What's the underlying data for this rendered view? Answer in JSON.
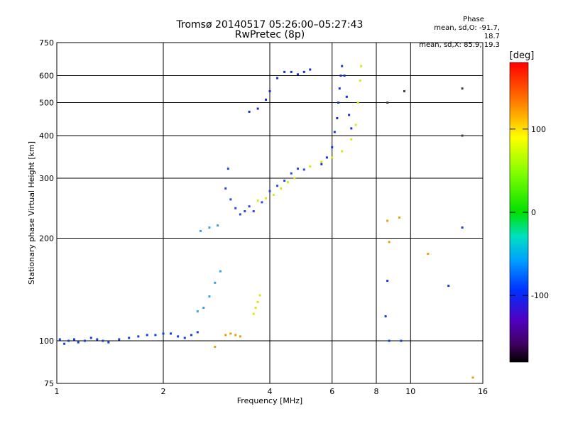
{
  "chart_data": {
    "type": "scatter",
    "title": "Tromsø 20140517 05:26:00–05:27:43",
    "subtitle": "RwPretec (8p)",
    "xlabel": "Frequency [MHz]",
    "ylabel": "Stationary phase Virtual Height [km]",
    "xscale": "log",
    "yscale": "log",
    "xlim": [
      1,
      16
    ],
    "ylim": [
      75,
      750
    ],
    "grid": true,
    "xticks": [
      "1",
      "2",
      "4",
      "6",
      "8",
      "10",
      "16"
    ],
    "yticks": [
      "75",
      "100",
      "200",
      "300",
      "400",
      "500",
      "600",
      "750"
    ],
    "phase_stats": {
      "title": "Phase",
      "O_mode": "mean, sd,O: -91.7, 18.7",
      "X_mode": "mean, sd,X:  85.9, 19.3"
    },
    "colorbar": {
      "label": "[deg]",
      "range": [
        -180,
        180
      ],
      "ticks": [
        "100",
        "0",
        "-100"
      ],
      "tick_values": [
        100,
        0,
        -100
      ]
    },
    "series": [
      {
        "mode": "O",
        "color": "#1040e0",
        "points": [
          [
            1.02,
            101
          ],
          [
            1.05,
            98
          ],
          [
            1.08,
            100
          ],
          [
            1.12,
            101
          ],
          [
            1.15,
            99
          ],
          [
            1.2,
            100
          ],
          [
            1.25,
            102
          ],
          [
            1.3,
            101
          ],
          [
            1.35,
            100
          ],
          [
            1.4,
            99
          ],
          [
            1.5,
            101
          ],
          [
            1.6,
            102
          ],
          [
            1.7,
            103
          ],
          [
            1.8,
            104
          ],
          [
            1.9,
            104
          ],
          [
            2.0,
            105
          ],
          [
            2.1,
            105
          ],
          [
            2.2,
            103
          ],
          [
            2.3,
            102
          ],
          [
            2.4,
            104
          ],
          [
            2.5,
            106
          ]
        ]
      },
      {
        "mode": "O",
        "color": "#2a48e8",
        "points": [
          [
            3.0,
            280
          ],
          [
            3.05,
            320
          ],
          [
            3.1,
            260
          ],
          [
            3.2,
            245
          ],
          [
            3.3,
            235
          ],
          [
            3.4,
            240
          ],
          [
            3.5,
            248
          ],
          [
            3.6,
            240
          ],
          [
            3.8,
            255
          ],
          [
            4.0,
            275
          ],
          [
            4.2,
            285
          ],
          [
            4.4,
            295
          ],
          [
            4.6,
            310
          ],
          [
            4.8,
            320
          ],
          [
            5.0,
            318
          ]
        ]
      },
      {
        "mode": "O",
        "color": "#1a2ad0",
        "points": [
          [
            3.5,
            470
          ],
          [
            3.7,
            480
          ],
          [
            3.9,
            510
          ],
          [
            4.0,
            540
          ],
          [
            4.2,
            590
          ],
          [
            4.4,
            615
          ],
          [
            4.6,
            615
          ],
          [
            4.8,
            605
          ],
          [
            5.0,
            615
          ],
          [
            5.2,
            625
          ]
        ]
      },
      {
        "mode": "O",
        "color": "#1a2fd0",
        "points": [
          [
            5.6,
            330
          ],
          [
            5.8,
            345
          ],
          [
            6.0,
            370
          ],
          [
            6.1,
            410
          ],
          [
            6.2,
            450
          ],
          [
            6.25,
            500
          ],
          [
            6.3,
            550
          ],
          [
            6.35,
            600
          ],
          [
            6.4,
            640
          ],
          [
            6.5,
            600
          ],
          [
            6.6,
            520
          ],
          [
            6.7,
            460
          ],
          [
            6.8,
            420
          ]
        ]
      },
      {
        "mode": "O",
        "color": "#3aa0e0",
        "points": [
          [
            2.5,
            122
          ],
          [
            2.6,
            125
          ],
          [
            2.7,
            135
          ],
          [
            2.8,
            148
          ],
          [
            2.9,
            160
          ],
          [
            2.55,
            210
          ],
          [
            2.7,
            215
          ],
          [
            2.85,
            218
          ]
        ]
      },
      {
        "mode": "X",
        "color": "#d8e818",
        "points": [
          [
            3.7,
            258
          ],
          [
            3.9,
            262
          ],
          [
            4.1,
            268
          ],
          [
            4.3,
            280
          ],
          [
            4.5,
            292
          ],
          [
            4.7,
            300
          ],
          [
            5.2,
            325
          ],
          [
            5.6,
            335
          ],
          [
            6.0,
            345
          ],
          [
            6.4,
            360
          ],
          [
            6.8,
            390
          ],
          [
            7.0,
            430
          ],
          [
            7.1,
            500
          ],
          [
            7.2,
            580
          ],
          [
            7.25,
            640
          ]
        ]
      },
      {
        "mode": "X",
        "color": "#e8a010",
        "points": [
          [
            3.0,
            104
          ],
          [
            3.1,
            105
          ],
          [
            3.2,
            104
          ],
          [
            3.3,
            103
          ]
        ]
      },
      {
        "mode": "X",
        "color": "#e0e020",
        "points": [
          [
            3.6,
            120
          ],
          [
            3.65,
            125
          ],
          [
            3.7,
            130
          ],
          [
            3.75,
            136
          ]
        ]
      }
    ],
    "scatter_extra": [
      {
        "color": "#404040",
        "points": [
          [
            8.6,
            500
          ],
          [
            9.6,
            540
          ],
          [
            14,
            550
          ],
          [
            14,
            400
          ]
        ]
      },
      {
        "color": "#e8a010",
        "points": [
          [
            8.7,
            195
          ],
          [
            8.6,
            225
          ],
          [
            9.3,
            230
          ],
          [
            11.2,
            180
          ],
          [
            15,
            78
          ],
          [
            2.8,
            96
          ]
        ]
      },
      {
        "color": "#1040e0",
        "points": [
          [
            8.6,
            150
          ],
          [
            8.5,
            118
          ],
          [
            12.8,
            145
          ],
          [
            14,
            215
          ],
          [
            8.7,
            100
          ],
          [
            9.4,
            100
          ]
        ]
      }
    ]
  }
}
